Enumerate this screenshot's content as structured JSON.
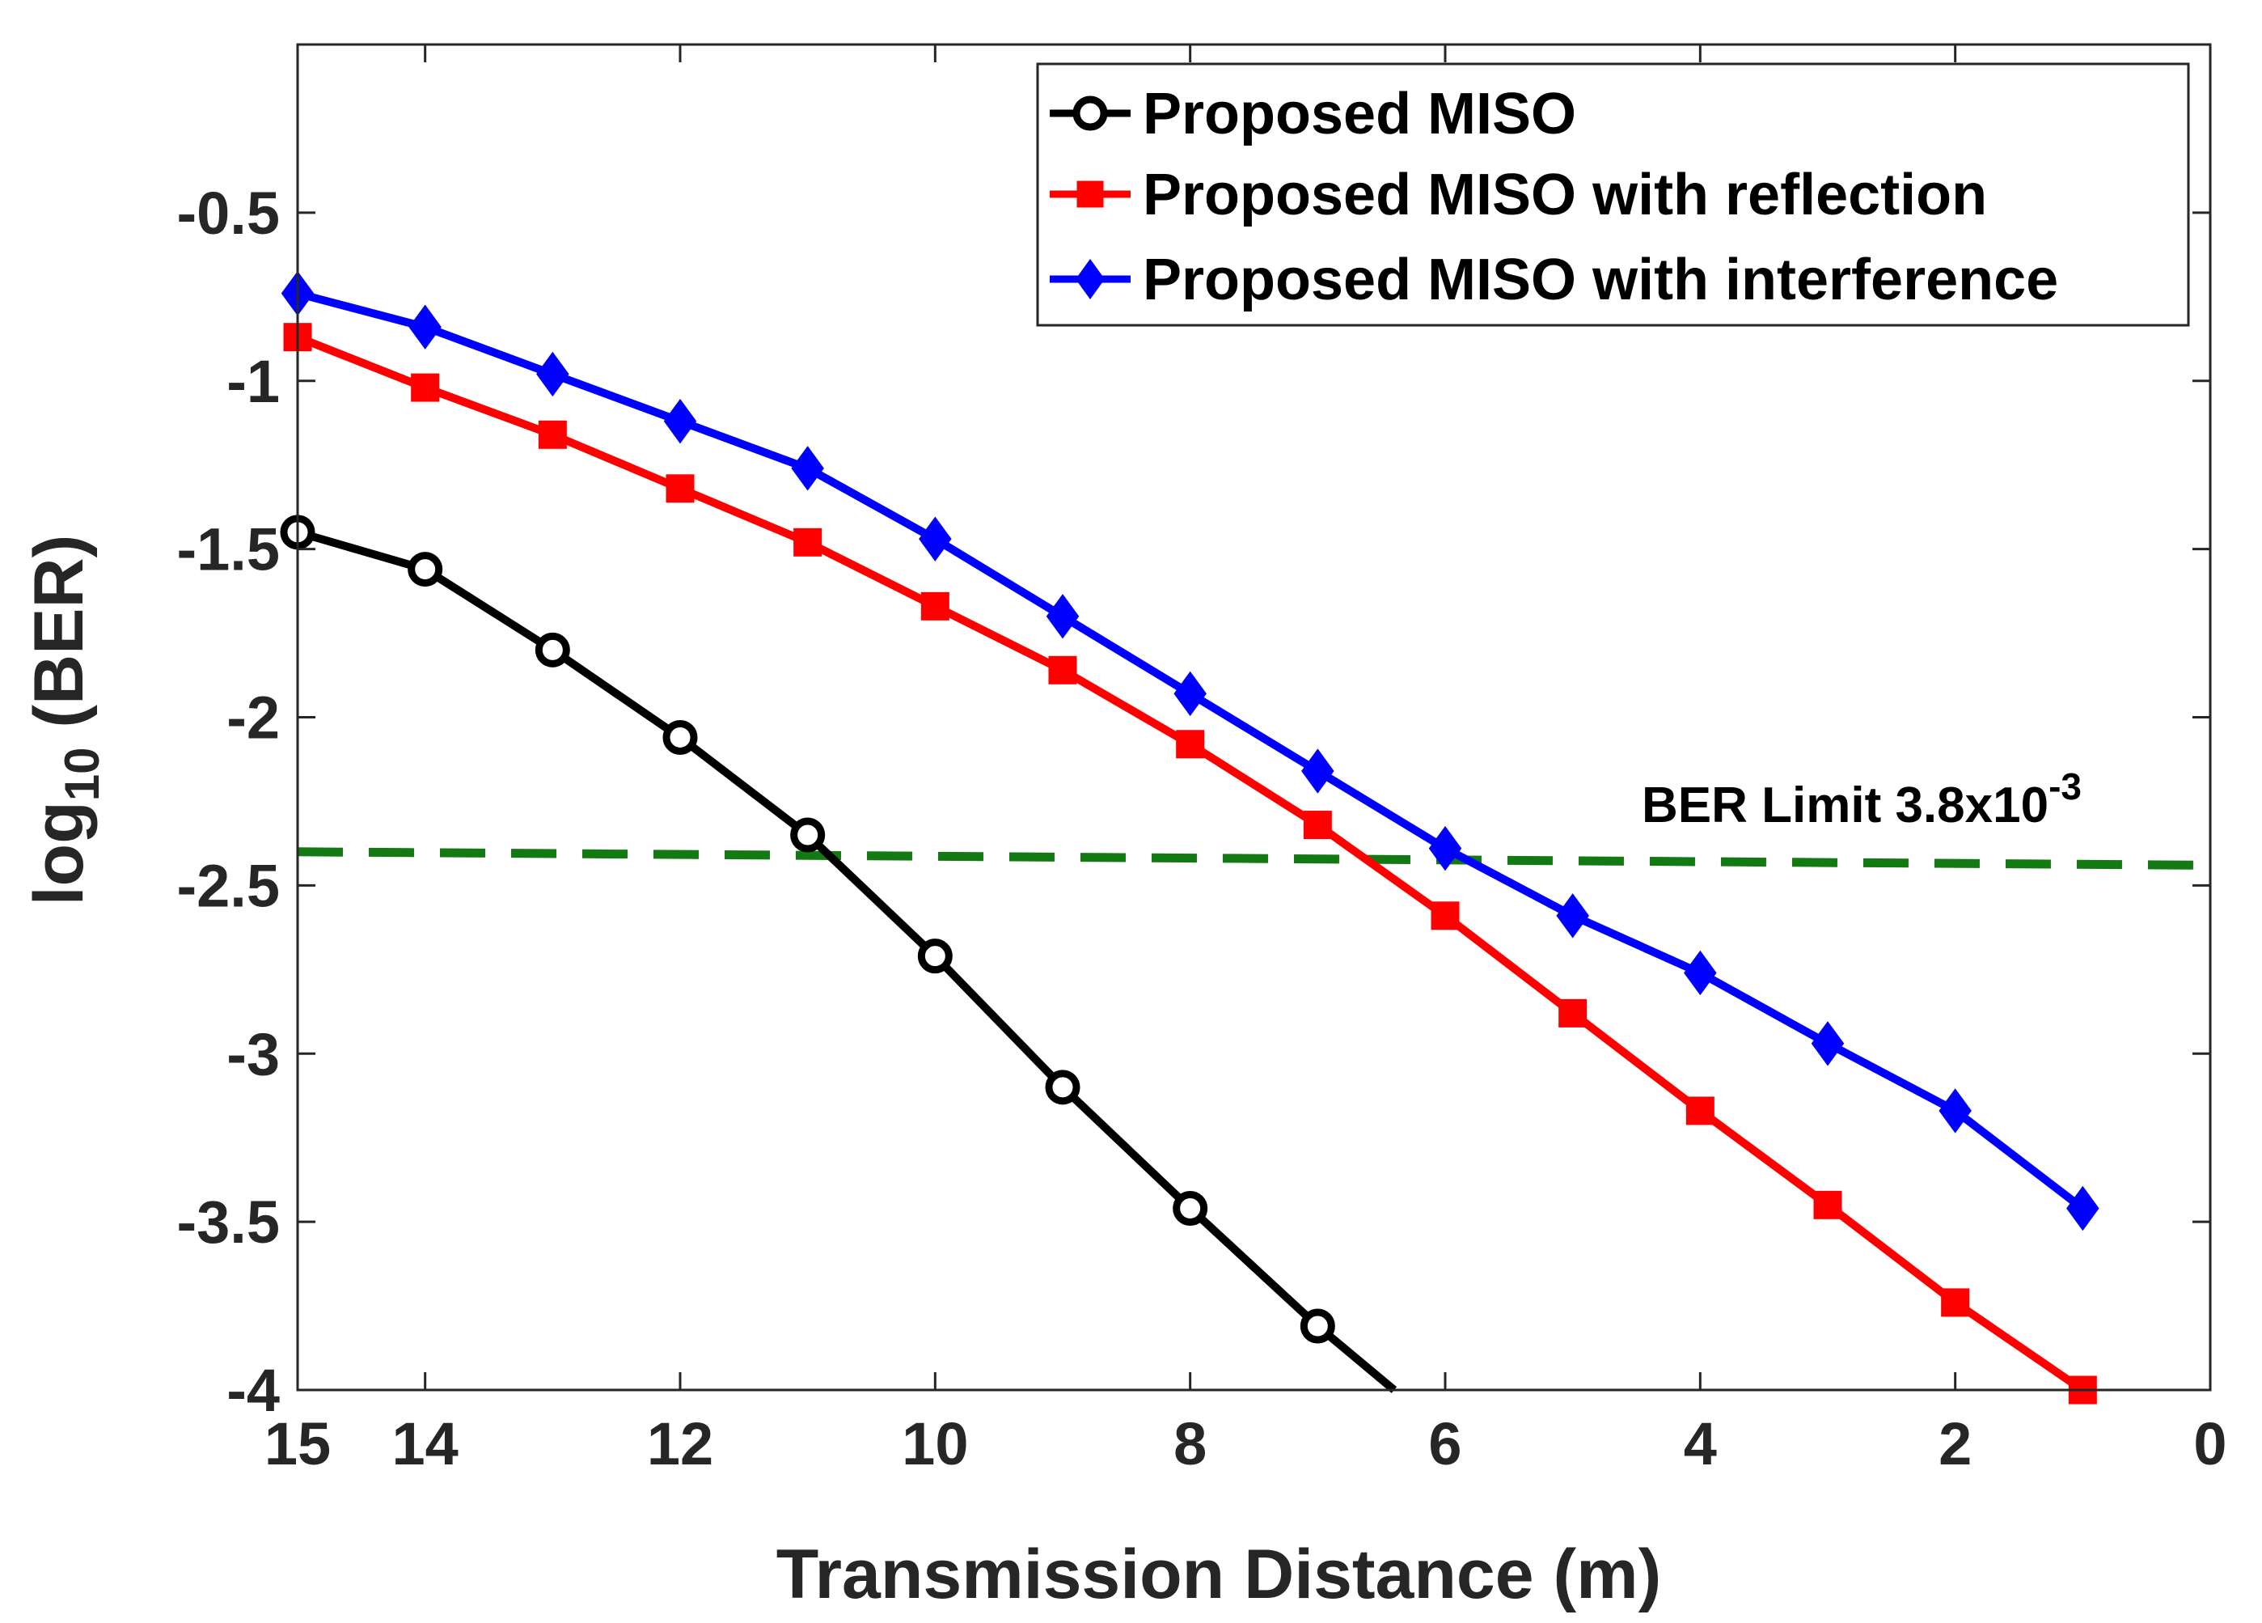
{
  "chart_data": {
    "type": "line",
    "title": "",
    "xlabel": "Transmission Distance (m)",
    "ylabel": {
      "prefix": "log",
      "subscript": "10",
      "suffix": " (BER)"
    },
    "xlim": [
      15,
      0
    ],
    "ylim": [
      -4,
      0
    ],
    "x_reversed": true,
    "grid": false,
    "legend_position": "top-right",
    "x_ticks": [
      15,
      14,
      12,
      10,
      8,
      6,
      4,
      2,
      0
    ],
    "x_tick_labels": [
      "15",
      "14",
      "12",
      "10",
      "8",
      "6",
      "4",
      "2",
      "0"
    ],
    "y_ticks": [
      -4,
      -3.5,
      -3,
      -2.5,
      -2,
      -1.5,
      -1,
      -0.5
    ],
    "y_tick_labels": [
      "-4",
      "-3.5",
      "-3",
      "-2.5",
      "-2",
      "-1.5",
      "-1",
      "-0.5"
    ],
    "series": [
      {
        "name": "Proposed MISO",
        "color": "#000000",
        "marker": "circle",
        "x": [
          15,
          14,
          13,
          12,
          11,
          10,
          9,
          8,
          7,
          6.4
        ],
        "values": [
          -1.45,
          -1.56,
          -1.8,
          -2.06,
          -2.35,
          -2.71,
          -3.1,
          -3.46,
          -3.81,
          -4.0
        ]
      },
      {
        "name": "Proposed MISO with reflection",
        "color": "#ff0000",
        "marker": "square",
        "x": [
          15,
          14,
          13,
          12,
          11,
          10,
          9,
          8,
          7,
          6,
          5,
          4,
          3,
          2,
          1
        ],
        "values": [
          -0.87,
          -1.02,
          -1.16,
          -1.32,
          -1.48,
          -1.67,
          -1.86,
          -2.08,
          -2.32,
          -2.59,
          -2.88,
          -3.17,
          -3.45,
          -3.74,
          -4.0
        ]
      },
      {
        "name": "Proposed MISO with interference",
        "color": "#0000ff",
        "marker": "diamond",
        "x": [
          15,
          14,
          13,
          12,
          11,
          10,
          9,
          8,
          7,
          6,
          5,
          4,
          3,
          2,
          1
        ],
        "values": [
          -0.74,
          -0.84,
          -0.98,
          -1.12,
          -1.26,
          -1.47,
          -1.7,
          -1.93,
          -2.16,
          -2.39,
          -2.59,
          -2.76,
          -2.97,
          -3.17,
          -3.46
        ]
      }
    ],
    "reference_line": {
      "name": "BER Limit",
      "color": "#137a13",
      "style": "dashed",
      "x": [
        15,
        0
      ],
      "values": [
        -2.4,
        -2.44
      ],
      "label_prefix": "BER Limit 3.8x10",
      "label_exponent": "-3"
    }
  }
}
